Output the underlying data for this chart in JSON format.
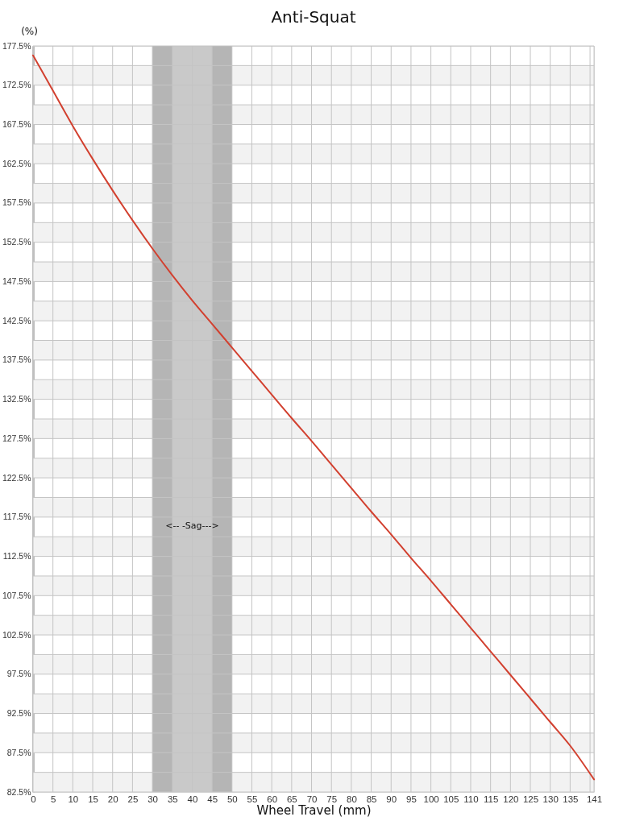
{
  "chart_data": {
    "type": "line",
    "title": "Anti-Squat",
    "xlabel": "Wheel Travel (mm)",
    "ylabel": "(%)",
    "x": [
      0,
      5,
      10,
      15,
      20,
      25,
      30,
      35,
      40,
      45,
      50,
      55,
      60,
      65,
      70,
      75,
      80,
      85,
      90,
      95,
      100,
      105,
      110,
      115,
      120,
      125,
      130,
      135,
      141
    ],
    "series": [
      {
        "color": "#d2402f",
        "values": [
          176.3,
          171.8,
          167.3,
          163.1,
          159.1,
          155.3,
          151.7,
          148.3,
          145.1,
          142.1,
          139.1,
          136.1,
          133.1,
          130.1,
          127.2,
          124.2,
          121.2,
          118.2,
          115.3,
          112.3,
          109.4,
          106.4,
          103.4,
          100.4,
          97.4,
          94.4,
          91.4,
          88.4,
          84.1
        ]
      }
    ],
    "xlim": [
      0,
      141
    ],
    "xticks": [
      0,
      5,
      10,
      15,
      20,
      25,
      30,
      35,
      40,
      45,
      50,
      55,
      60,
      65,
      70,
      75,
      80,
      85,
      90,
      95,
      100,
      105,
      110,
      115,
      120,
      125,
      130,
      135,
      {
        "value": 140,
        "label": null
      },
      141
    ],
    "ylim": [
      82.5,
      177.5
    ],
    "yticks": [
      {
        "value": 82.5,
        "label": "82.5%"
      },
      {
        "value": 85,
        "label": null
      },
      {
        "value": 87.5,
        "label": "87.5%"
      },
      {
        "value": 90,
        "label": null
      },
      {
        "value": 92.5,
        "label": "92.5%"
      },
      {
        "value": 95,
        "label": null
      },
      {
        "value": 97.5,
        "label": "97.5%"
      },
      {
        "value": 100,
        "label": null
      },
      {
        "value": 102.5,
        "label": "102.5%"
      },
      {
        "value": 105,
        "label": null
      },
      {
        "value": 107.5,
        "label": "107.5%"
      },
      {
        "value": 110,
        "label": null
      },
      {
        "value": 112.5,
        "label": "112.5%"
      },
      {
        "value": 115,
        "label": null
      },
      {
        "value": 117.5,
        "label": "117.5%"
      },
      {
        "value": 120,
        "label": null
      },
      {
        "value": 122.5,
        "label": "122.5%"
      },
      {
        "value": 125,
        "label": null
      },
      {
        "value": 127.5,
        "label": "127.5%"
      },
      {
        "value": 130,
        "label": null
      },
      {
        "value": 132.5,
        "label": "132.5%"
      },
      {
        "value": 135,
        "label": null
      },
      {
        "value": 137.5,
        "label": "137.5%"
      },
      {
        "value": 140,
        "label": null
      },
      {
        "value": 142.5,
        "label": "142.5%"
      },
      {
        "value": 145,
        "label": null
      },
      {
        "value": 147.5,
        "label": "147.5%"
      },
      {
        "value": 150,
        "label": null
      },
      {
        "value": 152.5,
        "label": "152.5%"
      },
      {
        "value": 155,
        "label": null
      },
      {
        "value": 157.5,
        "label": "157.5%"
      },
      {
        "value": 160,
        "label": null
      },
      {
        "value": 162.5,
        "label": "162.5%"
      },
      {
        "value": 165,
        "label": null
      },
      {
        "value": 167.5,
        "label": "167.5%"
      },
      {
        "value": 170,
        "label": null
      },
      {
        "value": 172.5,
        "label": "172.5%"
      },
      {
        "value": 175,
        "label": null
      },
      {
        "value": 177.5,
        "label": "177.5%"
      }
    ],
    "grid": true,
    "bands": [
      {
        "axis": "x",
        "from": 30,
        "to": 50,
        "color": "#c9c9c9",
        "label": "<-- -Sag--->"
      },
      {
        "axis": "x",
        "from": 30,
        "to": 35,
        "color": "#b5b5b5"
      },
      {
        "axis": "x",
        "from": 45,
        "to": 50,
        "color": "#b5b5b5"
      }
    ]
  }
}
